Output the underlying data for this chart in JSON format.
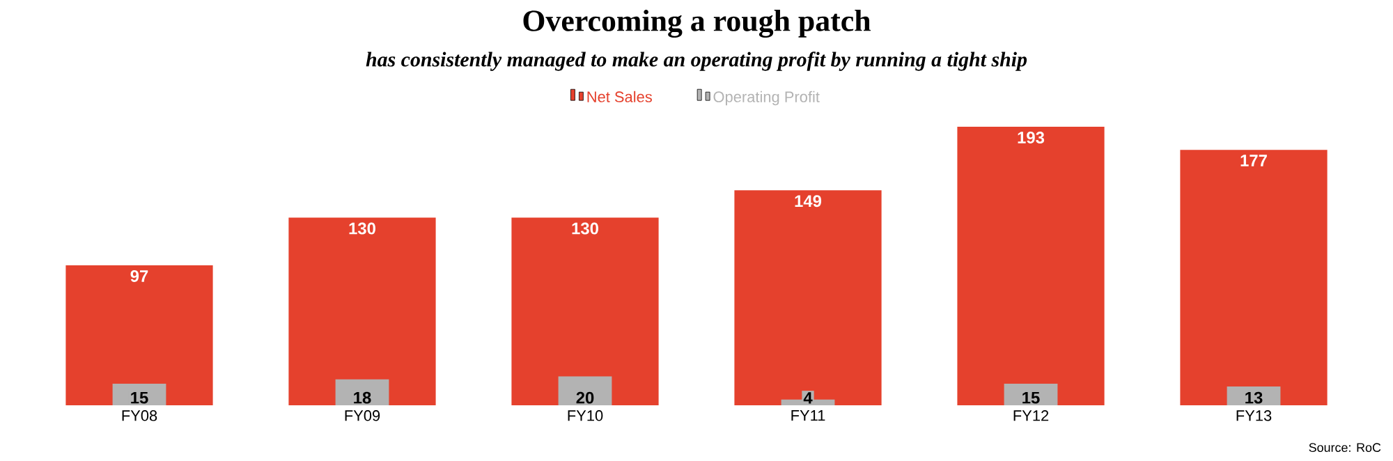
{
  "chart_data": {
    "type": "bar",
    "title": "Overcoming a rough patch",
    "subtitle": "has consistently managed to make an operating profit by running a tight ship",
    "categories": [
      "FY08",
      "FY09",
      "FY10",
      "FY11",
      "FY12",
      "FY13"
    ],
    "series": [
      {
        "name": "Net Sales",
        "color": "#e5412d",
        "values": [
          97,
          130,
          130,
          149,
          193,
          177
        ]
      },
      {
        "name": "Operating Profit",
        "color": "#b3b3b3",
        "values": [
          15,
          18,
          20,
          4,
          15,
          13
        ]
      }
    ],
    "data_labels": true,
    "legend": "top",
    "annotations": [
      "Source: RoC"
    ]
  }
}
